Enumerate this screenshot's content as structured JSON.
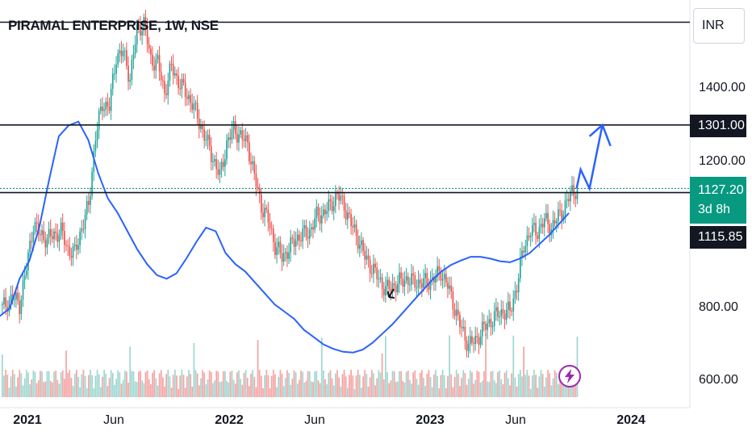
{
  "header": {
    "title": "PIRAMAL ENTERPRISE, 1W, NSE"
  },
  "currency_button": {
    "label": "INR"
  },
  "price_tag": {
    "price": "1127.20",
    "countdown": "3d 8h"
  },
  "level_tags": {
    "upper": "1301.00",
    "lower": "1115.85"
  },
  "colors": {
    "up": "#26a69a",
    "down": "#ef5350",
    "ma": "#2962ff",
    "price_line": "#089981",
    "volume_up": "#9fd6cf",
    "volume_down": "#f5a3a3",
    "alert": "#9c27b0"
  },
  "icons": {
    "alert": "flash-icon"
  },
  "chart_data": {
    "type": "candlestick",
    "symbol": "PIRAMAL ENTERPRISE",
    "interval": "1W",
    "exchange": "NSE",
    "currency": "INR",
    "y_ticks": [
      "1400.00",
      "1200.00",
      "800.00",
      "600.00"
    ],
    "x_ticks": [
      {
        "label": "2021",
        "bold": true
      },
      {
        "label": "Jun",
        "bold": false
      },
      {
        "label": "2022",
        "bold": true
      },
      {
        "label": "Jun",
        "bold": false
      },
      {
        "label": "2023",
        "bold": true
      },
      {
        "label": "Jun",
        "bold": false
      },
      {
        "label": "2024",
        "bold": true
      }
    ],
    "ylim": [
      585,
      1625
    ],
    "last_price": 1127.2,
    "horizontal_levels": [
      1580,
      1301,
      1115.85
    ],
    "projection": {
      "points": [
        [
          1115,
          1179
        ],
        [
          1150,
          1127
        ],
        [
          1301,
          1190
        ]
      ]
    },
    "series": [
      {
        "name": "price",
        "anchors": [
          [
            0,
            800
          ],
          [
            6,
            830
          ],
          [
            10,
            810
          ],
          [
            14,
            910
          ],
          [
            18,
            1030
          ],
          [
            22,
            1000
          ],
          [
            26,
            990
          ],
          [
            30,
            1000
          ],
          [
            34,
            1010
          ],
          [
            38,
            960
          ],
          [
            42,
            950
          ],
          [
            46,
            1020
          ],
          [
            50,
            1080
          ],
          [
            54,
            1270
          ],
          [
            58,
            1360
          ],
          [
            62,
            1350
          ],
          [
            66,
            1490
          ],
          [
            70,
            1500
          ],
          [
            74,
            1430
          ],
          [
            78,
            1560
          ],
          [
            82,
            1580
          ],
          [
            86,
            1480
          ],
          [
            90,
            1470
          ],
          [
            94,
            1390
          ],
          [
            98,
            1460
          ],
          [
            102,
            1420
          ],
          [
            106,
            1390
          ],
          [
            110,
            1360
          ],
          [
            114,
            1310
          ],
          [
            118,
            1260
          ],
          [
            122,
            1210
          ],
          [
            126,
            1160
          ],
          [
            130,
            1250
          ],
          [
            134,
            1290
          ],
          [
            138,
            1270
          ],
          [
            142,
            1250
          ],
          [
            146,
            1160
          ],
          [
            150,
            1080
          ],
          [
            154,
            1040
          ],
          [
            158,
            970
          ],
          [
            162,
            940
          ],
          [
            166,
            960
          ],
          [
            170,
            990
          ],
          [
            174,
            1000
          ],
          [
            178,
            1010
          ],
          [
            182,
            1050
          ],
          [
            186,
            1060
          ],
          [
            190,
            1080
          ],
          [
            194,
            1110
          ],
          [
            198,
            1080
          ],
          [
            202,
            1030
          ],
          [
            206,
            990
          ],
          [
            210,
            940
          ],
          [
            214,
            910
          ],
          [
            218,
            880
          ],
          [
            222,
            850
          ],
          [
            226,
            860
          ],
          [
            230,
            870
          ],
          [
            234,
            880
          ],
          [
            238,
            870
          ],
          [
            242,
            870
          ],
          [
            246,
            870
          ],
          [
            250,
            880
          ],
          [
            254,
            900
          ],
          [
            258,
            860
          ],
          [
            262,
            800
          ],
          [
            266,
            740
          ],
          [
            270,
            700
          ],
          [
            274,
            710
          ],
          [
            278,
            740
          ],
          [
            282,
            760
          ],
          [
            286,
            780
          ],
          [
            290,
            790
          ],
          [
            294,
            790
          ],
          [
            298,
            860
          ],
          [
            302,
            970
          ],
          [
            306,
            1010
          ],
          [
            310,
            1010
          ],
          [
            314,
            1040
          ],
          [
            318,
            1020
          ],
          [
            322,
            1050
          ],
          [
            326,
            1080
          ],
          [
            330,
            1120
          ],
          [
            333,
            1125
          ]
        ]
      },
      {
        "name": "ma",
        "points": [
          [
            0,
            778
          ],
          [
            20,
            800
          ],
          [
            40,
            880
          ],
          [
            60,
            930
          ],
          [
            80,
            1020
          ],
          [
            100,
            1150
          ],
          [
            120,
            1270
          ],
          [
            140,
            1300
          ],
          [
            160,
            1310
          ],
          [
            180,
            1260
          ],
          [
            200,
            1170
          ],
          [
            220,
            1100
          ],
          [
            240,
            1060
          ],
          [
            260,
            1010
          ],
          [
            280,
            960
          ],
          [
            300,
            920
          ],
          [
            320,
            890
          ],
          [
            340,
            880
          ],
          [
            360,
            895
          ],
          [
            380,
            935
          ],
          [
            400,
            980
          ],
          [
            420,
            1020
          ],
          [
            440,
            1010
          ],
          [
            460,
            950
          ],
          [
            480,
            920
          ],
          [
            500,
            900
          ],
          [
            520,
            870
          ],
          [
            540,
            840
          ],
          [
            560,
            810
          ],
          [
            580,
            790
          ],
          [
            600,
            770
          ],
          [
            620,
            740
          ],
          [
            640,
            720
          ],
          [
            660,
            700
          ],
          [
            680,
            688
          ],
          [
            700,
            680
          ],
          [
            720,
            678
          ],
          [
            740,
            686
          ],
          [
            760,
            705
          ],
          [
            780,
            730
          ],
          [
            800,
            755
          ],
          [
            820,
            785
          ],
          [
            840,
            815
          ],
          [
            860,
            845
          ],
          [
            880,
            875
          ],
          [
            900,
            900
          ],
          [
            920,
            918
          ],
          [
            940,
            930
          ],
          [
            960,
            940
          ],
          [
            980,
            940
          ],
          [
            1000,
            935
          ],
          [
            1020,
            928
          ],
          [
            1040,
            925
          ],
          [
            1060,
            935
          ],
          [
            1080,
            950
          ],
          [
            1100,
            975
          ],
          [
            1120,
            1000
          ],
          [
            1140,
            1030
          ],
          [
            1160,
            1060
          ]
        ]
      }
    ],
    "volume_series": {
      "name": "volume",
      "ylim": [
        0,
        1
      ]
    }
  }
}
